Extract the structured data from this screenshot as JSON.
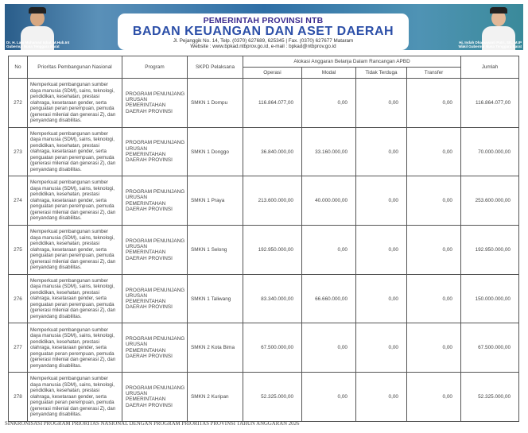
{
  "header": {
    "line1": "PEMERINTAH PROVINSI NTB",
    "line2": "BADAN KEUANGAN DAN ASET DAERAH",
    "line3": "Jl. Pejanggik No. 14, Telp. (0370) 627689, 625345 | Fax. (0370) 627677 Mataram",
    "line4": "Website : www.bpkad.ntbprov.go.id, e-mail : bpkad@ntbprov.go.id",
    "left_name": "Dr. H. Lalu Muhamad Iqbal, M.Hub.Int",
    "left_title": "Gubernur Nusa Tenggara Barat",
    "right_name": "Hj. Indah Dhamayanti Putri, SE., M.IP",
    "right_title": "Wakil Gubernur Nusa Tenggara Barat"
  },
  "table": {
    "headers": {
      "no": "No",
      "prioritas": "Prioritas Pembangunan Nasional",
      "program": "Program",
      "skpd": "SKPD Pelaksana",
      "alokasi": "Alokasi Anggaran Belanja Dalam Rancangan APBD",
      "operasi": "Operasi",
      "modal": "Modal",
      "tidak_terduga": "Tidak Terduga",
      "transfer": "Transfer",
      "jumlah": "Jumlah"
    },
    "rows": [
      {
        "no": "272",
        "prioritas": "Memperkuat pembangunan sumber daya manusia (SDM), sains, teknologi, pendidikan, kesehatan, prestasi olahraga, kesetaraan gender, serta penguatan peran perempuan, pemuda (generasi milenial dan generasi Z), dan penyandang disabilitas.",
        "program": "PROGRAM PENUNJANG URUSAN PEMERINTAHAN DAERAH PROVINSI",
        "skpd": "SMKN 1 Dompu",
        "operasi": "116.864.077,00",
        "modal": "0,00",
        "tidak_terduga": "0,00",
        "transfer": "0,00",
        "jumlah": "116.864.077,00"
      },
      {
        "no": "273",
        "prioritas": "Memperkuat pembangunan sumber daya manusia (SDM), sains, teknologi, pendidikan, kesehatan, prestasi olahraga, kesetaraan gender, serta penguatan peran perempuan, pemuda (generasi milenial dan generasi Z), dan penyandang disabilitas.",
        "program": "PROGRAM PENUNJANG URUSAN PEMERINTAHAN DAERAH PROVINSI",
        "skpd": "SMKN 1 Donggo",
        "operasi": "36.840.000,00",
        "modal": "33.160.000,00",
        "tidak_terduga": "0,00",
        "transfer": "0,00",
        "jumlah": "70.000.000,00"
      },
      {
        "no": "274",
        "prioritas": "Memperkuat pembangunan sumber daya manusia (SDM), sains, teknologi, pendidikan, kesehatan, prestasi olahraga, kesetaraan gender, serta penguatan peran perempuan, pemuda (generasi milenial dan generasi Z), dan penyandang disabilitas.",
        "program": "PROGRAM PENUNJANG URUSAN PEMERINTAHAN DAERAH PROVINSI",
        "skpd": "SMKN 1 Praya",
        "operasi": "213.600.000,00",
        "modal": "40.000.000,00",
        "tidak_terduga": "0,00",
        "transfer": "0,00",
        "jumlah": "253.600.000,00"
      },
      {
        "no": "275",
        "prioritas": "Memperkuat pembangunan sumber daya manusia (SDM), sains, teknologi, pendidikan, kesehatan, prestasi olahraga, kesetaraan gender, serta penguatan peran perempuan, pemuda (generasi milenial dan generasi Z), dan penyandang disabilitas.",
        "program": "PROGRAM PENUNJANG URUSAN PEMERINTAHAN DAERAH PROVINSI",
        "skpd": "SMKN 1 Selong",
        "operasi": "192.950.000,00",
        "modal": "0,00",
        "tidak_terduga": "0,00",
        "transfer": "0,00",
        "jumlah": "192.950.000,00"
      },
      {
        "no": "276",
        "prioritas": "Memperkuat pembangunan sumber daya manusia (SDM), sains, teknologi, pendidikan, kesehatan, prestasi olahraga, kesetaraan gender, serta penguatan peran perempuan, pemuda (generasi milenial dan generasi Z), dan penyandang disabilitas.",
        "program": "PROGRAM PENUNJANG URUSAN PEMERINTAHAN DAERAH PROVINSI",
        "skpd": "SMKN 1 Taliwang",
        "operasi": "83.340.000,00",
        "modal": "66.660.000,00",
        "tidak_terduga": "0,00",
        "transfer": "0,00",
        "jumlah": "150.000.000,00"
      },
      {
        "no": "277",
        "prioritas": "Memperkuat pembangunan sumber daya manusia (SDM), sains, teknologi, pendidikan, kesehatan, prestasi olahraga, kesetaraan gender, serta penguatan peran perempuan, pemuda (generasi milenial dan generasi Z), dan penyandang disabilitas.",
        "program": "PROGRAM PENUNJANG URUSAN PEMERINTAHAN DAERAH PROVINSI",
        "skpd": "SMKN 2 Kota Bima",
        "operasi": "67.500.000,00",
        "modal": "0,00",
        "tidak_terduga": "0,00",
        "transfer": "0,00",
        "jumlah": "67.500.000,00"
      },
      {
        "no": "278",
        "prioritas": "Memperkuat pembangunan sumber daya manusia (SDM), sains, teknologi, pendidikan, kesehatan, prestasi olahraga, kesetaraan gender, serta penguatan peran perempuan, pemuda (generasi milenial dan generasi Z), dan penyandang disabilitas.",
        "program": "PROGRAM PENUNJANG URUSAN PEMERINTAHAN DAERAH PROVINSI",
        "skpd": "SMKN 2 Kuripan",
        "operasi": "52.325.000,00",
        "modal": "0,00",
        "tidak_terduga": "0,00",
        "transfer": "0,00",
        "jumlah": "52.325.000,00"
      }
    ]
  },
  "footer": "SINKRONISASI PROGRAM PRIORITAS NASIONAL DENGAN PROGRAM PRIORITAS PROVINSI TAHUN ANGGARAN 2026"
}
